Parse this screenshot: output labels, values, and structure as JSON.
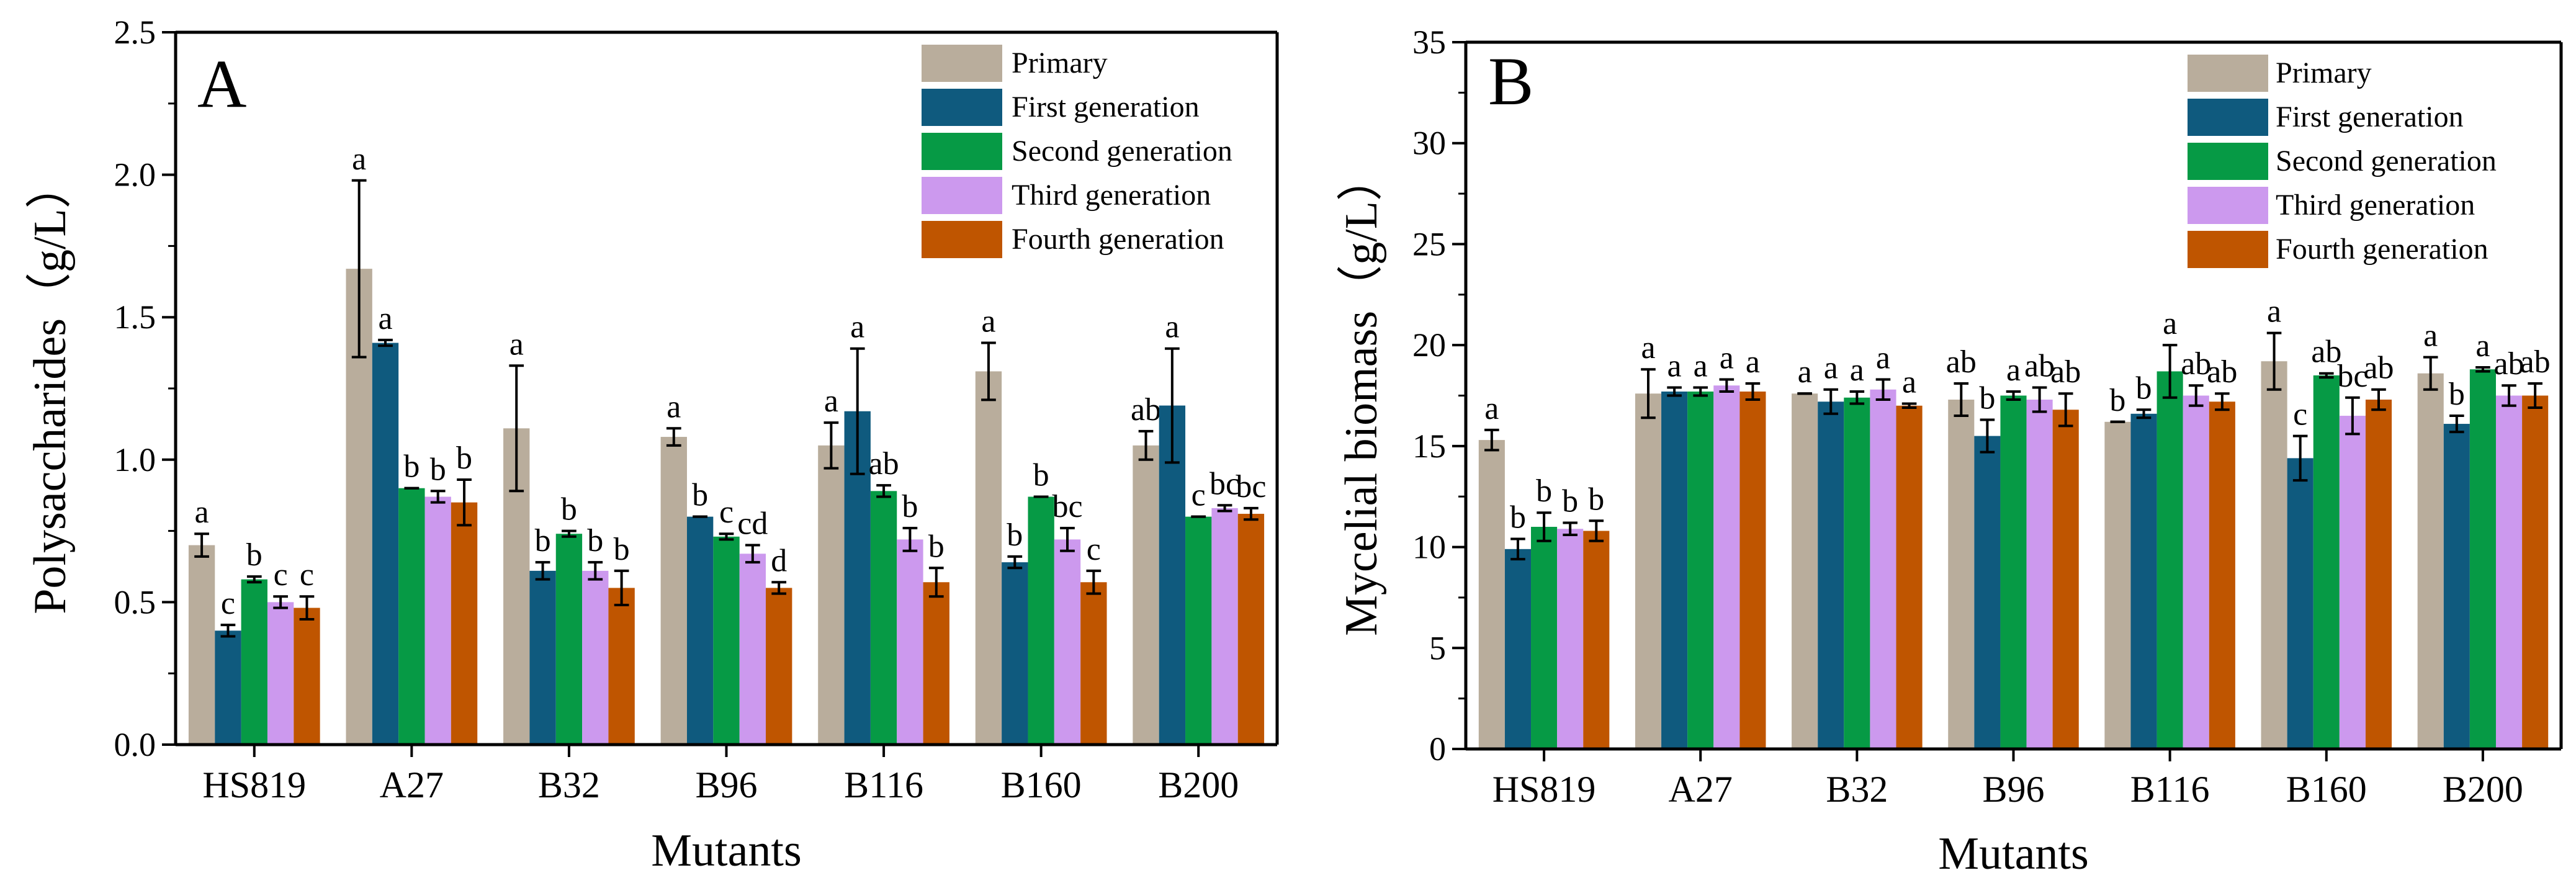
{
  "chart_data": [
    {
      "type": "bar",
      "panel_label": "A",
      "xlabel": "Mutants",
      "ylabel": "Polysaccharides（g/L）",
      "ylim": [
        0,
        2.5
      ],
      "yticks": [
        "0.0",
        "0.5",
        "1.0",
        "1.5",
        "2.0",
        "2.5"
      ],
      "categories": [
        "HS819",
        "A27",
        "B32",
        "B96",
        "B116",
        "B160",
        "B200"
      ],
      "legend_position": "top-right",
      "series": [
        {
          "name": "Primary",
          "color": "#b9ad9c",
          "values": [
            0.7,
            1.67,
            1.11,
            1.08,
            1.05,
            1.31,
            1.05
          ],
          "errors": [
            0.04,
            0.31,
            0.22,
            0.03,
            0.08,
            0.1,
            0.05
          ],
          "letters": [
            "a",
            "a",
            "a",
            "a",
            "a",
            "a",
            "ab"
          ]
        },
        {
          "name": "First generation",
          "color": "#0f5a7e",
          "values": [
            0.4,
            1.41,
            0.61,
            0.8,
            1.17,
            0.64,
            1.19
          ],
          "errors": [
            0.02,
            0.01,
            0.03,
            0.0,
            0.22,
            0.02,
            0.2
          ],
          "letters": [
            "c",
            "a",
            "b",
            "b",
            "a",
            "b",
            "a"
          ]
        },
        {
          "name": "Second generation",
          "color": "#069a45",
          "values": [
            0.58,
            0.9,
            0.74,
            0.73,
            0.89,
            0.87,
            0.8
          ],
          "errors": [
            0.01,
            0.0,
            0.01,
            0.01,
            0.02,
            0.0,
            0.0
          ],
          "letters": [
            "b",
            "b",
            "b",
            "c",
            "ab",
            "b",
            "c"
          ]
        },
        {
          "name": "Third generation",
          "color": "#cc99ee",
          "values": [
            0.5,
            0.87,
            0.61,
            0.67,
            0.72,
            0.72,
            0.83
          ],
          "errors": [
            0.02,
            0.02,
            0.03,
            0.03,
            0.04,
            0.04,
            0.01
          ],
          "letters": [
            "c",
            "b",
            "b",
            "cd",
            "b",
            "bc",
            "bc"
          ]
        },
        {
          "name": "Fourth generation",
          "color": "#bf5500",
          "values": [
            0.48,
            0.85,
            0.55,
            0.55,
            0.57,
            0.57,
            0.81
          ],
          "errors": [
            0.04,
            0.08,
            0.06,
            0.02,
            0.05,
            0.04,
            0.02
          ],
          "letters": [
            "c",
            "b",
            "b",
            "d",
            "b",
            "c",
            "bc"
          ]
        }
      ]
    },
    {
      "type": "bar",
      "panel_label": "B",
      "xlabel": "Mutants",
      "ylabel": "Mycelial biomass（g/L）",
      "ylim": [
        0,
        35
      ],
      "yticks": [
        "0",
        "5",
        "10",
        "15",
        "20",
        "25",
        "30",
        "35"
      ],
      "categories": [
        "HS819",
        "A27",
        "B32",
        "B96",
        "B116",
        "B160",
        "B200"
      ],
      "legend_position": "top-right",
      "series": [
        {
          "name": "Primary",
          "color": "#b9ad9c",
          "values": [
            15.3,
            17.6,
            17.6,
            17.3,
            16.2,
            19.2,
            18.6
          ],
          "errors": [
            0.5,
            1.2,
            0.0,
            0.8,
            0.0,
            1.4,
            0.8
          ],
          "letters": [
            "a",
            "a",
            "a",
            "ab",
            "b",
            "a",
            "a"
          ]
        },
        {
          "name": "First generation",
          "color": "#0f5a7e",
          "values": [
            9.9,
            17.7,
            17.2,
            15.5,
            16.6,
            14.4,
            16.1
          ],
          "errors": [
            0.5,
            0.2,
            0.6,
            0.8,
            0.2,
            1.1,
            0.4
          ],
          "letters": [
            "b",
            "a",
            "a",
            "b",
            "b",
            "c",
            "b"
          ]
        },
        {
          "name": "Second generation",
          "color": "#069a45",
          "values": [
            11.0,
            17.7,
            17.4,
            17.5,
            18.7,
            18.5,
            18.8
          ],
          "errors": [
            0.7,
            0.2,
            0.3,
            0.2,
            1.3,
            0.1,
            0.1
          ],
          "letters": [
            "b",
            "a",
            "a",
            "a",
            "a",
            "ab",
            "a"
          ]
        },
        {
          "name": "Third generation",
          "color": "#cc99ee",
          "values": [
            10.9,
            18.0,
            17.8,
            17.3,
            17.5,
            16.5,
            17.5
          ],
          "errors": [
            0.3,
            0.3,
            0.5,
            0.6,
            0.5,
            0.9,
            0.5
          ],
          "letters": [
            "b",
            "a",
            "a",
            "ab",
            "ab",
            "bc",
            "ab"
          ]
        },
        {
          "name": "Fourth generation",
          "color": "#bf5500",
          "values": [
            10.8,
            17.7,
            17.0,
            16.8,
            17.2,
            17.3,
            17.5
          ],
          "errors": [
            0.5,
            0.4,
            0.1,
            0.8,
            0.4,
            0.5,
            0.6
          ],
          "letters": [
            "b",
            "a",
            "a",
            "ab",
            "ab",
            "ab",
            "ab"
          ]
        }
      ]
    }
  ]
}
